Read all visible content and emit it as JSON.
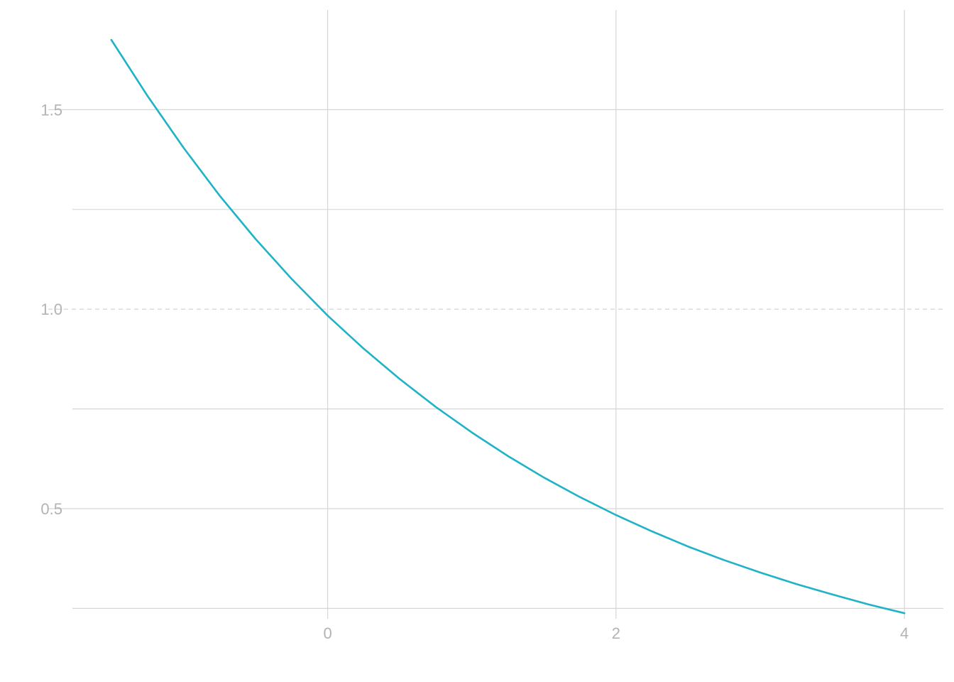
{
  "chart_data": {
    "type": "line",
    "title": "",
    "xlabel": "",
    "ylabel": "",
    "xlim": [
      -1.77,
      4.27
    ],
    "ylim": [
      0.224,
      1.75
    ],
    "x_ticks": [
      0,
      2,
      4
    ],
    "x_tick_labels": [
      "0",
      "2",
      "4"
    ],
    "y_ticks": [
      0.5,
      1.0,
      1.5
    ],
    "y_tick_labels": [
      "0.5",
      "1.0",
      "1.5"
    ],
    "y_minor_gridlines": [
      0.25,
      0.75,
      1.25
    ],
    "reference_line": {
      "axis": "y",
      "value": 1.0,
      "style": "dashed"
    },
    "grid": true,
    "legend": "none",
    "series": [
      {
        "color": "#1fb3c8",
        "x": [
          -1.5,
          -1.25,
          -1.0,
          -0.75,
          -0.5,
          -0.25,
          0.0,
          0.25,
          0.5,
          0.75,
          1.0,
          1.25,
          1.5,
          1.75,
          2.0,
          2.25,
          2.5,
          2.75,
          3.0,
          3.25,
          3.5,
          3.75,
          4.0
        ],
        "y": [
          1.675,
          1.535,
          1.405,
          1.285,
          1.176,
          1.076,
          0.984,
          0.901,
          0.825,
          0.755,
          0.691,
          0.632,
          0.578,
          0.529,
          0.484,
          0.443,
          0.405,
          0.371,
          0.34,
          0.311,
          0.285,
          0.26,
          0.238
        ]
      }
    ]
  }
}
